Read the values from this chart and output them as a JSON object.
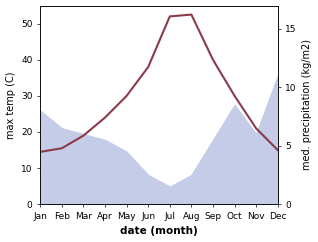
{
  "months": [
    "Jan",
    "Feb",
    "Mar",
    "Apr",
    "May",
    "Jun",
    "Jul",
    "Aug",
    "Sep",
    "Oct",
    "Nov",
    "Dec"
  ],
  "month_x": [
    1,
    2,
    3,
    4,
    5,
    6,
    7,
    8,
    9,
    10,
    11,
    12
  ],
  "temp": [
    14.5,
    15.5,
    19.0,
    24.0,
    30.0,
    38.0,
    52.0,
    52.5,
    40.0,
    30.0,
    21.0,
    15.0
  ],
  "precip": [
    8.0,
    6.5,
    6.0,
    5.5,
    4.5,
    2.5,
    1.5,
    2.5,
    5.5,
    8.5,
    6.0,
    11.0
  ],
  "temp_color": "#8B3A4A",
  "precip_fill_color": "#c5cce8",
  "ylim_left": [
    0,
    55
  ],
  "ylim_right": [
    0,
    17
  ],
  "yticks_left": [
    0,
    10,
    20,
    30,
    40,
    50
  ],
  "yticks_right": [
    0,
    5,
    10,
    15
  ],
  "xlabel": "date (month)",
  "ylabel_left": "max temp (C)",
  "ylabel_right": "med. precipitation (kg/m2)",
  "axis_fontsize": 7,
  "tick_fontsize": 6.5,
  "label_fontsize": 7.5
}
